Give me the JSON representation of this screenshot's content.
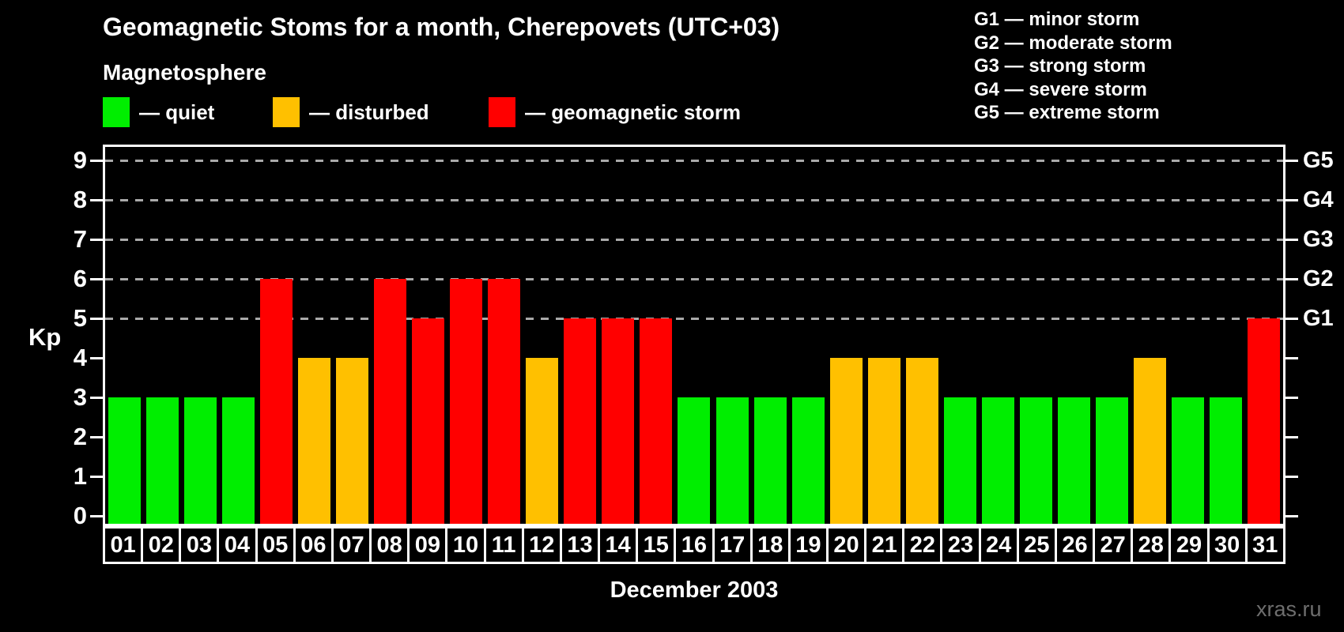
{
  "title": "Geomagnetic Stoms for a month, Cherepovets (UTC+03)",
  "magnetosphere": {
    "heading": "Magnetosphere",
    "legend": [
      {
        "status": "quiet",
        "label": "— quiet",
        "color": "#00EE00"
      },
      {
        "status": "disturbed",
        "label": "— disturbed",
        "color": "#FFC000"
      },
      {
        "status": "storm",
        "label": "— geomagnetic storm",
        "color": "#FF0000"
      }
    ]
  },
  "storm_scale": [
    "G1 — minor storm",
    "G2 — moderate storm",
    "G3 — strong storm",
    "G4 — severe storm",
    "G5 — extreme storm"
  ],
  "watermark": "xras.ru",
  "chart_data": {
    "type": "bar",
    "title": "Geomagnetic Stoms for a month, Cherepovets (UTC+03)",
    "xlabel": "December 2003",
    "ylabel": "Kp",
    "ylim": [
      0,
      9
    ],
    "grid": "horizontal dashed lines at Kp 5,6,7,8,9",
    "legend_position": "top-left",
    "categories": [
      "01",
      "02",
      "03",
      "04",
      "05",
      "06",
      "07",
      "08",
      "09",
      "10",
      "11",
      "12",
      "13",
      "14",
      "15",
      "16",
      "17",
      "18",
      "19",
      "20",
      "21",
      "22",
      "23",
      "24",
      "25",
      "26",
      "27",
      "28",
      "29",
      "30",
      "31"
    ],
    "values": [
      3,
      3,
      3,
      3,
      6,
      4,
      4,
      6,
      5,
      6,
      6,
      4,
      5,
      5,
      5,
      3,
      3,
      3,
      3,
      4,
      4,
      4,
      3,
      3,
      3,
      3,
      3,
      4,
      3,
      3,
      5
    ],
    "statuses": [
      "quiet",
      "quiet",
      "quiet",
      "quiet",
      "storm",
      "disturbed",
      "disturbed",
      "storm",
      "storm",
      "storm",
      "storm",
      "disturbed",
      "storm",
      "storm",
      "storm",
      "quiet",
      "quiet",
      "quiet",
      "quiet",
      "disturbed",
      "disturbed",
      "disturbed",
      "quiet",
      "quiet",
      "quiet",
      "quiet",
      "quiet",
      "disturbed",
      "quiet",
      "quiet",
      "storm"
    ],
    "status_colors": {
      "quiet": "#00EE00",
      "disturbed": "#FFC000",
      "storm": "#FF0000"
    },
    "left_ticks": [
      0,
      1,
      2,
      3,
      4,
      5,
      6,
      7,
      8,
      9
    ],
    "right_axis": [
      {
        "label": "G1",
        "kp": 5
      },
      {
        "label": "G2",
        "kp": 6
      },
      {
        "label": "G3",
        "kp": 7
      },
      {
        "label": "G4",
        "kp": 8
      },
      {
        "label": "G5",
        "kp": 9
      }
    ]
  }
}
